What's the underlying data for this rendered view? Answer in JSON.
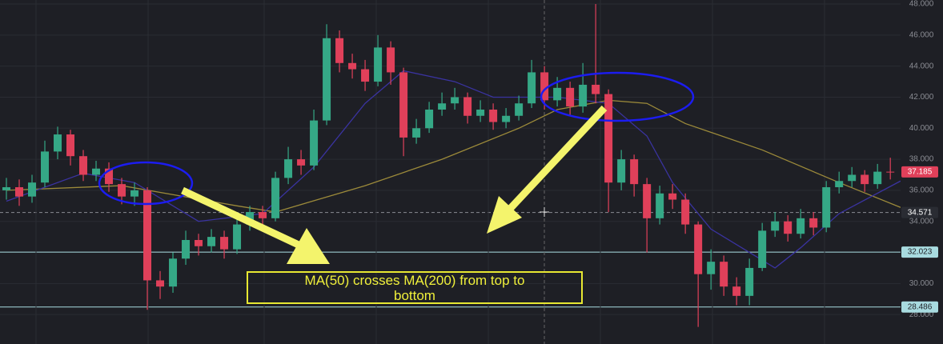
{
  "chart_data": {
    "type": "candlestick",
    "open": [
      36.0,
      36.2,
      35.6,
      36.5,
      38.5,
      39.6,
      38.2,
      37.0,
      37.4,
      36.4,
      35.6,
      36.0,
      30.2,
      29.8,
      31.6,
      32.8,
      32.4,
      33.0,
      32.2,
      33.8,
      34.6,
      34.2,
      36.8,
      38.0,
      37.6,
      40.5,
      45.8,
      44.2,
      43.8,
      43.0,
      45.2,
      43.6,
      39.4,
      40.0,
      41.2,
      41.6,
      42.0,
      40.8,
      41.2,
      40.4,
      40.8,
      41.6,
      43.6,
      41.8,
      42.6,
      41.4,
      42.8,
      42.2,
      36.5,
      38.0,
      36.4,
      34.2,
      35.8,
      35.4,
      33.8,
      30.6,
      31.4,
      29.8,
      29.2,
      31.0,
      33.4,
      34.0,
      33.2,
      34.2,
      33.6,
      36.2,
      36.6,
      37.0,
      36.4,
      37.2
    ],
    "high": [
      36.8,
      36.7,
      37.0,
      39.2,
      40.1,
      39.9,
      38.6,
      37.9,
      37.8,
      36.8,
      36.5,
      36.2,
      30.8,
      32.0,
      33.4,
      33.2,
      33.5,
      33.4,
      34.2,
      35.0,
      35.0,
      37.2,
      38.8,
      38.6,
      41.2,
      46.7,
      46.3,
      44.8,
      44.4,
      46.0,
      45.6,
      43.9,
      40.6,
      41.7,
      42.3,
      42.6,
      42.3,
      41.8,
      41.6,
      41.3,
      42.1,
      44.4,
      44.0,
      43.3,
      43.0,
      44.2,
      48.0,
      42.5,
      38.6,
      38.3,
      36.8,
      36.3,
      36.4,
      35.8,
      34.0,
      32.2,
      31.8,
      30.4,
      31.6,
      33.9,
      34.6,
      34.4,
      34.8,
      34.6,
      36.6,
      37.2,
      37.5,
      37.3,
      37.7,
      38.1
    ],
    "low": [
      35.4,
      35.0,
      35.2,
      36.2,
      38.0,
      37.6,
      36.6,
      36.6,
      35.9,
      35.1,
      35.0,
      28.3,
      29.0,
      29.4,
      31.2,
      31.8,
      32.0,
      31.6,
      31.9,
      33.4,
      33.8,
      34.0,
      36.4,
      37.0,
      37.3,
      40.2,
      43.6,
      43.2,
      42.4,
      42.7,
      42.8,
      38.2,
      39.0,
      39.7,
      40.8,
      41.2,
      40.3,
      40.4,
      39.9,
      40.0,
      40.5,
      41.3,
      41.2,
      41.4,
      40.8,
      41.0,
      41.6,
      34.6,
      36.0,
      35.6,
      32.0,
      33.8,
      34.8,
      33.2,
      27.2,
      29.6,
      29.2,
      28.6,
      28.6,
      30.8,
      33.0,
      32.7,
      32.9,
      33.1,
      33.3,
      35.8,
      36.2,
      35.9,
      36.1,
      36.7
    ],
    "close": [
      36.2,
      35.6,
      36.5,
      38.5,
      39.6,
      38.2,
      37.0,
      37.4,
      36.4,
      35.6,
      36.0,
      30.2,
      29.8,
      31.6,
      32.8,
      32.4,
      33.0,
      32.2,
      33.8,
      34.6,
      34.2,
      36.8,
      38.0,
      37.6,
      40.5,
      45.8,
      44.2,
      43.8,
      43.0,
      45.2,
      43.6,
      39.4,
      40.0,
      41.2,
      41.6,
      42.0,
      40.8,
      41.2,
      40.4,
      40.8,
      41.6,
      43.6,
      41.8,
      42.6,
      41.4,
      42.8,
      42.2,
      36.5,
      38.0,
      36.4,
      34.2,
      35.8,
      35.4,
      33.8,
      30.6,
      31.4,
      29.8,
      29.2,
      31.0,
      33.4,
      34.0,
      33.2,
      34.2,
      33.6,
      36.2,
      36.6,
      37.0,
      36.4,
      37.2,
      37.185
    ],
    "up_color": "#35a886",
    "down_color": "#e0405a",
    "moving_averages": [
      {
        "color": "#9c8a3a",
        "x": [
          0,
          9,
          18,
          21,
          28,
          34,
          40,
          43,
          47,
          50,
          53,
          59,
          65,
          69.8
        ],
        "values": [
          36.0,
          36.3,
          35.0,
          34.6,
          36.3,
          38.0,
          40.0,
          41.2,
          41.8,
          41.6,
          40.3,
          38.6,
          36.5,
          34.9
        ]
      },
      {
        "color": "#3a33a0",
        "x": [
          0,
          6,
          10,
          15,
          20,
          24,
          28,
          31,
          35,
          38,
          43,
          47,
          50,
          52,
          55,
          60,
          62,
          65,
          69.8
        ],
        "values": [
          35.3,
          37.1,
          36.5,
          34.0,
          34.5,
          37.5,
          41.6,
          43.7,
          43.0,
          42.0,
          42.0,
          41.6,
          39.5,
          36.5,
          33.5,
          31.0,
          32.3,
          34.5,
          36.6
        ]
      }
    ],
    "xlim": [
      -0.5,
      69.8
    ],
    "ylim": [
      26.1,
      48.26
    ],
    "yticks": [
      {
        "value": 28,
        "label": "28.000"
      },
      {
        "value": 30,
        "label": "30.000"
      },
      {
        "value": 32,
        "label": "32.000"
      },
      {
        "value": 34,
        "label": "34.000"
      },
      {
        "value": 36,
        "label": "36.000"
      },
      {
        "value": 38,
        "label": "38.000"
      },
      {
        "value": 40,
        "label": "40.000"
      },
      {
        "value": 42,
        "label": "42.000"
      },
      {
        "value": 44,
        "label": "44.000"
      },
      {
        "value": 46,
        "label": "46.000"
      },
      {
        "value": 48,
        "label": "48.000"
      }
    ],
    "grid": true,
    "price_labels": [
      {
        "value": 37.185,
        "color": "#e0405a",
        "text_color": "#ffffff",
        "line": "none"
      },
      {
        "value": 34.571,
        "color": "#2a2c33",
        "text_color": "#ffffff",
        "line": "dashed"
      },
      {
        "value": 32.023,
        "color": "#a8dbe0",
        "text_color": "#1e1f25",
        "line": "solid"
      },
      {
        "value": 28.486,
        "color": "#a8dbe0",
        "text_color": "#1e1f25",
        "line": "solid"
      }
    ],
    "annotation": "MA(50) crosses MA(200) from top to bottom"
  }
}
